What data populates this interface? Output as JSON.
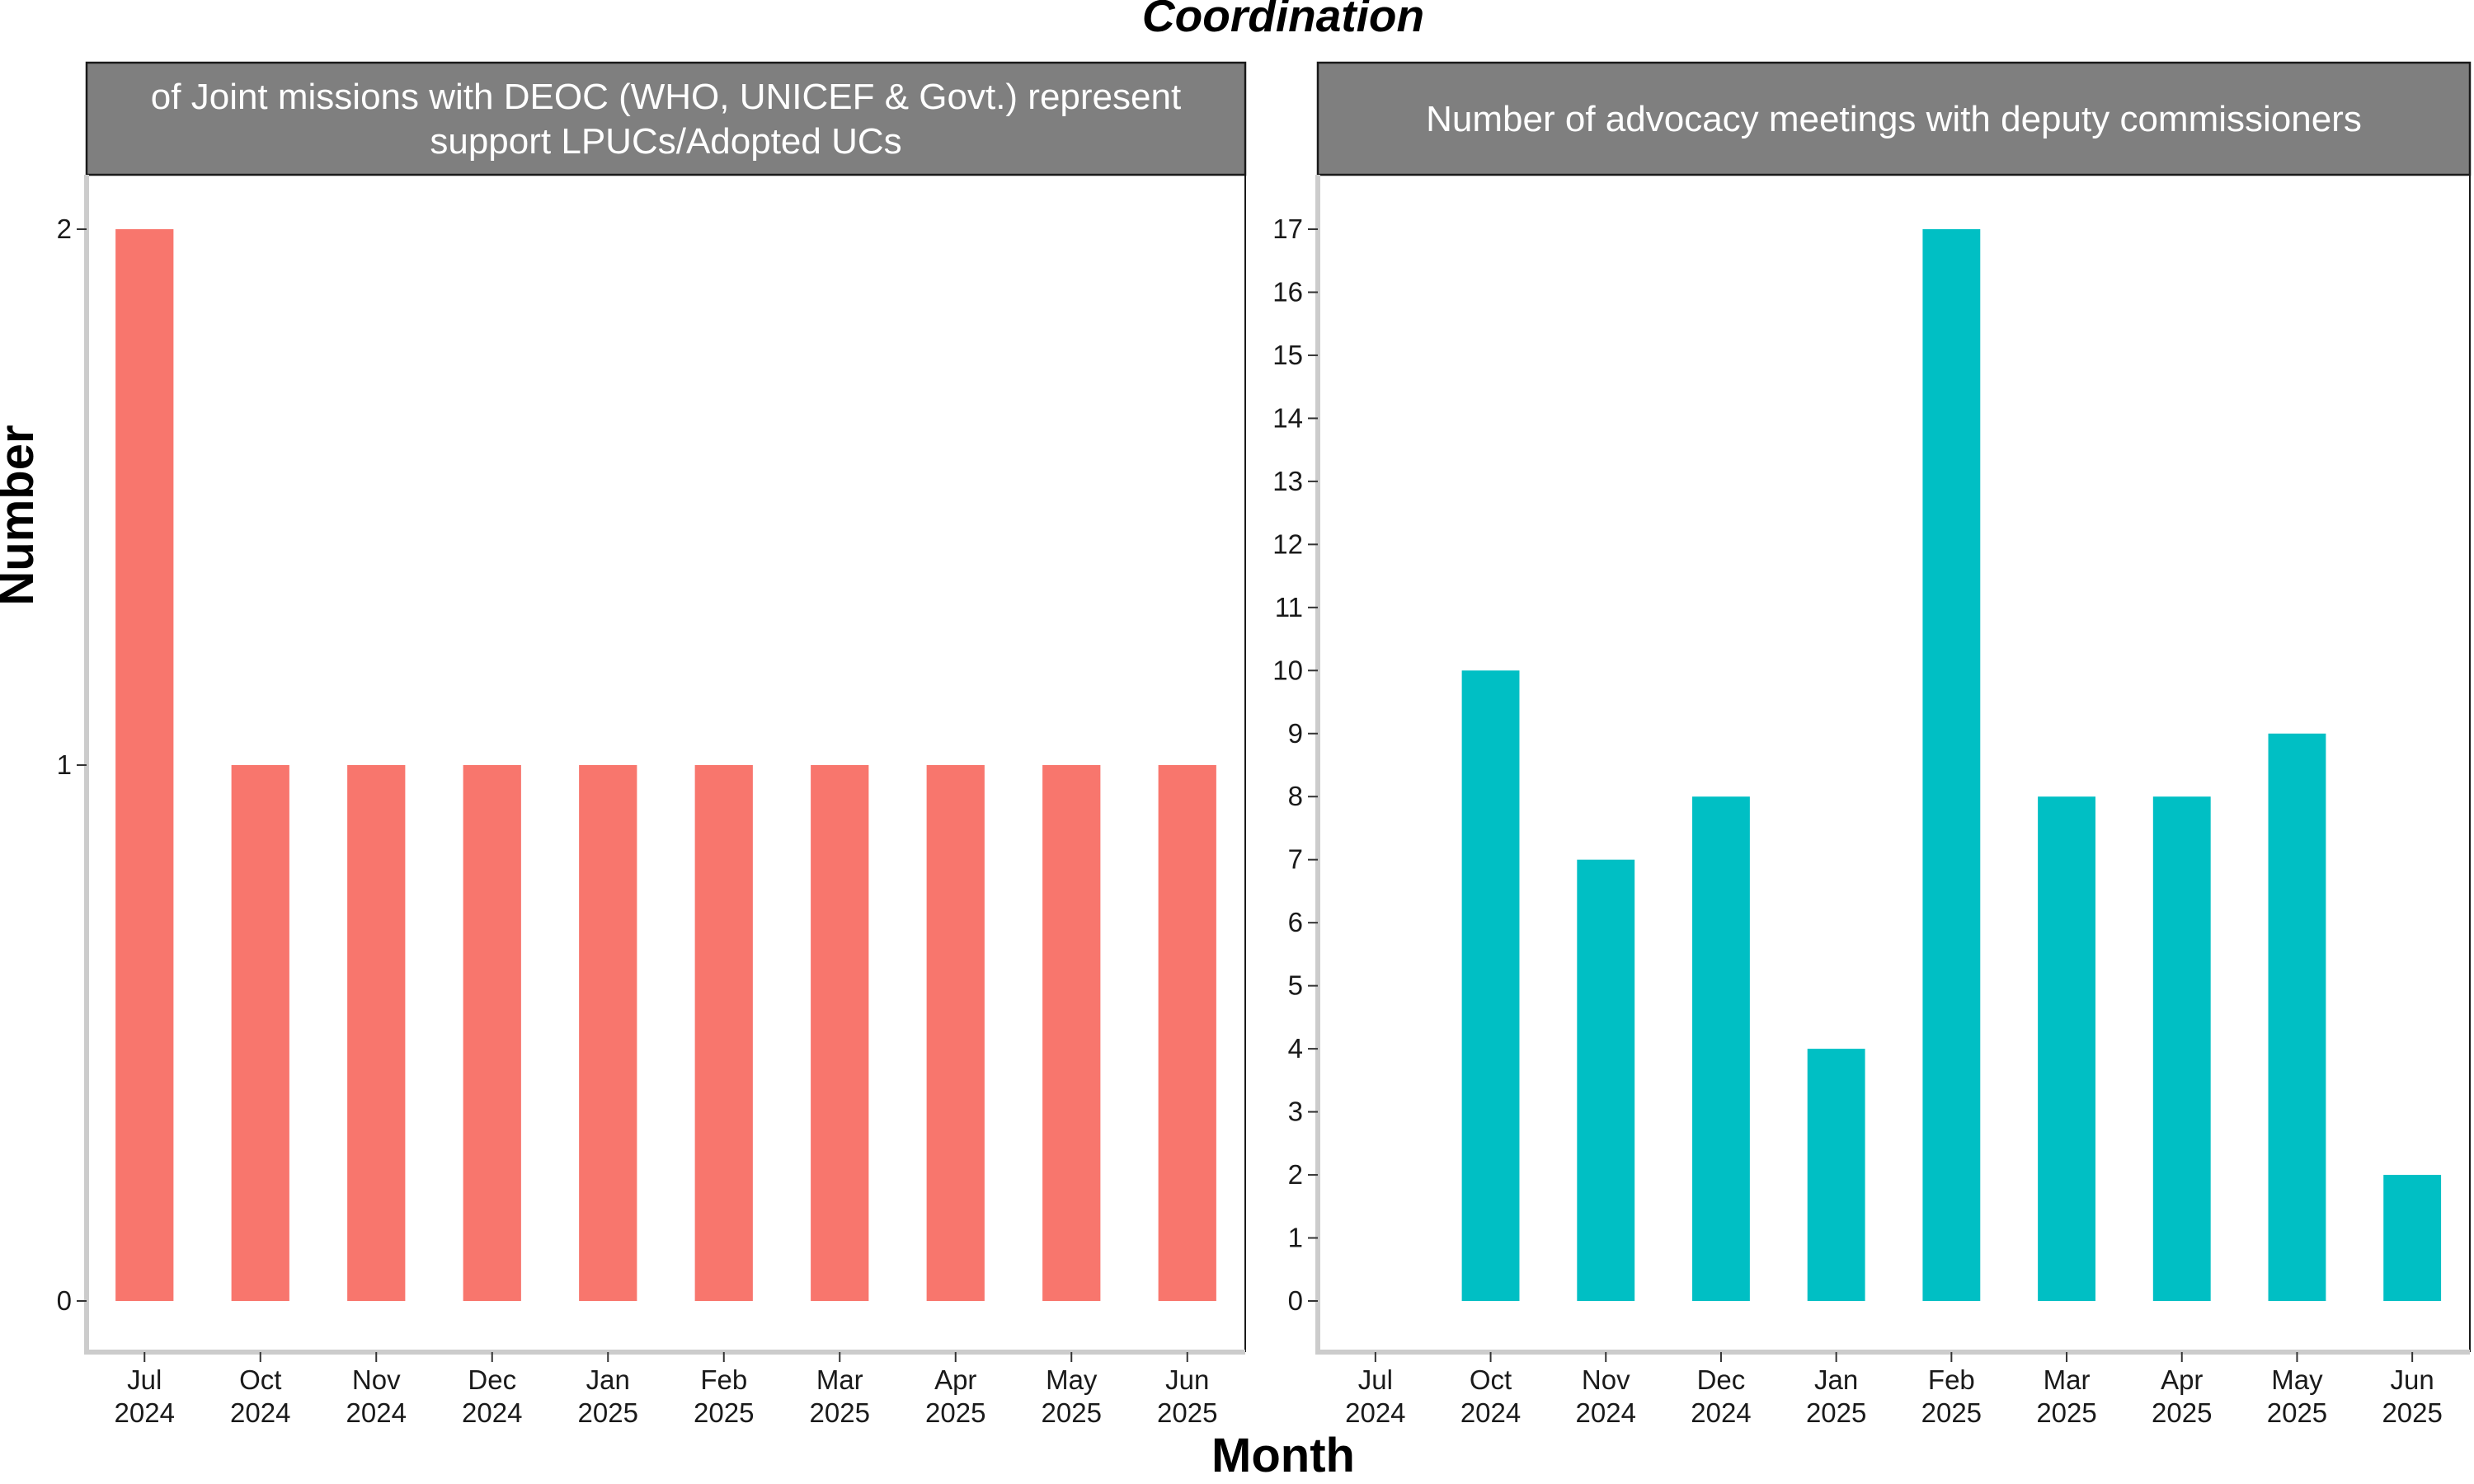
{
  "chart_data": {
    "title": "Coordination",
    "xlabel": "Month",
    "ylabel": "Number",
    "type": "bar",
    "categories": [
      [
        "Jul",
        "2024"
      ],
      [
        "Oct",
        "2024"
      ],
      [
        "Nov",
        "2024"
      ],
      [
        "Dec",
        "2024"
      ],
      [
        "Jan",
        "2025"
      ],
      [
        "Feb",
        "2025"
      ],
      [
        "Mar",
        "2025"
      ],
      [
        "Apr",
        "2025"
      ],
      [
        "May",
        "2025"
      ],
      [
        "Jun",
        "2025"
      ]
    ],
    "panels": [
      {
        "strip_lines": [
          "of Joint missions with DEOC (WHO, UNICEF & Govt.) represent",
          "support LPUCs/Adopted UCs"
        ],
        "color": "#F8766D",
        "values": [
          2,
          1,
          1,
          1,
          1,
          1,
          1,
          1,
          1,
          1
        ],
        "ylim": [
          0,
          2
        ],
        "yticks": [
          0,
          1,
          2
        ]
      },
      {
        "strip_lines": [
          "Number of advocacy meetings with deputy commissioners"
        ],
        "color": "#00BFC4",
        "values": [
          0,
          10,
          7,
          8,
          4,
          17,
          8,
          8,
          9,
          2
        ],
        "ylim": [
          0,
          17
        ],
        "yticks": [
          0,
          1,
          2,
          3,
          4,
          5,
          6,
          7,
          8,
          9,
          10,
          11,
          12,
          13,
          14,
          15,
          16,
          17
        ]
      }
    ]
  }
}
